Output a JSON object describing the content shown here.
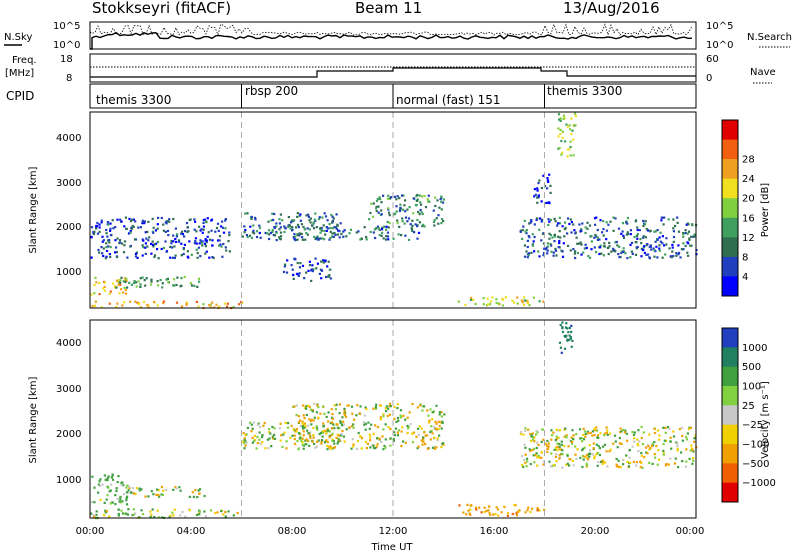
{
  "header": {
    "station": "Stokkseyri (fitACF)",
    "beam": "Beam 11",
    "date": "13/Aug/2016"
  },
  "info_panels": {
    "nsky_label": "N.Sky",
    "nsky_ticks": [
      "10^5",
      "10^0"
    ],
    "nsearch_label": "N.Search",
    "nsearch_ticks": [
      "10^5",
      "10^0"
    ],
    "freq_label": "Freq.",
    "freq_unit": "[MHz]",
    "freq_ticks": [
      "18",
      "8"
    ],
    "nave_label": "Nave",
    "nave_ticks": [
      "60",
      "0"
    ],
    "cpid_label": "CPID",
    "cpid_segments": [
      {
        "label": "themis 3300",
        "start_hour": 0,
        "end_hour": 6
      },
      {
        "label": "rbsp 200",
        "start_hour": 6,
        "end_hour": 12
      },
      {
        "label": "normal (fast) 151",
        "start_hour": 12,
        "end_hour": 18
      },
      {
        "label": "themis 3300",
        "start_hour": 18,
        "end_hour": 24
      }
    ]
  },
  "colors": {
    "power_scale": [
      "#0000ff",
      "#1f3fbf",
      "#2f6f4f",
      "#3f9f5f",
      "#7fcf3f",
      "#f0e020",
      "#f0a020",
      "#f06010",
      "#e00000"
    ],
    "velocity_scale": [
      "#2040c0",
      "#208060",
      "#40a040",
      "#80d040",
      "#c8c8c8",
      "#f0d000",
      "#f0a000",
      "#f06000",
      "#e00000"
    ]
  },
  "chart_data": [
    {
      "type": "heatmap",
      "name": "power-panel",
      "xlabel": "",
      "ylabel": "Slant Range [km]",
      "xlim": [
        0,
        24
      ],
      "ylim": [
        180,
        4500
      ],
      "y_ticks": [
        "1000",
        "2000",
        "3000",
        "4000"
      ],
      "colorbar_label": "Power [dB]",
      "colorbar_ticks": [
        "4",
        "8",
        "12",
        "16",
        "20",
        "24",
        "28"
      ],
      "scatter_regions": [
        {
          "x": [
            0,
            6
          ],
          "y": [
            200,
            350
          ],
          "value": 24
        },
        {
          "x": [
            0,
            1.5
          ],
          "y": [
            500,
            900
          ],
          "value": 22
        },
        {
          "x": [
            1,
            4.5
          ],
          "y": [
            650,
            900
          ],
          "value": 14
        },
        {
          "x": [
            0,
            5.5
          ],
          "y": [
            1300,
            2200
          ],
          "value": 8
        },
        {
          "x": [
            6,
            10
          ],
          "y": [
            1700,
            2300
          ],
          "value": 10
        },
        {
          "x": [
            7,
            13
          ],
          "y": [
            1700,
            2000
          ],
          "value": 10
        },
        {
          "x": [
            7.5,
            9.5
          ],
          "y": [
            800,
            1300
          ],
          "value": 8
        },
        {
          "x": [
            11,
            14
          ],
          "y": [
            2000,
            2700
          ],
          "value": 12
        },
        {
          "x": [
            14.5,
            18
          ],
          "y": [
            250,
            450
          ],
          "value": 20
        },
        {
          "x": [
            17,
            24
          ],
          "y": [
            1300,
            2200
          ],
          "value": 9
        },
        {
          "x": [
            17.5,
            18.2
          ],
          "y": [
            2500,
            3200
          ],
          "value": 6
        },
        {
          "x": [
            18.5,
            19.2
          ],
          "y": [
            3500,
            4500
          ],
          "value": 18
        }
      ]
    },
    {
      "type": "heatmap",
      "name": "velocity-panel",
      "xlabel": "Time UT",
      "ylabel": "Slant Range [km]",
      "xlim": [
        0,
        24
      ],
      "ylim": [
        180,
        4500
      ],
      "x_ticks": [
        "00:00",
        "04:00",
        "08:00",
        "12:00",
        "16:00",
        "20:00",
        "00:00"
      ],
      "y_ticks": [
        "1000",
        "2000",
        "3000",
        "4000"
      ],
      "colorbar_label": "Velocity [m s⁻¹]",
      "colorbar_ticks": [
        "1000",
        "500",
        "100",
        "25",
        "−25",
        "−100",
        "−500",
        "−1000"
      ],
      "scatter_regions": [
        {
          "x": [
            0,
            6
          ],
          "y": [
            200,
            400
          ],
          "value": 100
        },
        {
          "x": [
            0,
            1.5
          ],
          "y": [
            500,
            1200
          ],
          "value": 200
        },
        {
          "x": [
            1.5,
            4.5
          ],
          "y": [
            650,
            900
          ],
          "value": 0
        },
        {
          "x": [
            6,
            10
          ],
          "y": [
            1700,
            2300
          ],
          "value": 0
        },
        {
          "x": [
            8,
            14
          ],
          "y": [
            1700,
            2700
          ],
          "value": 0
        },
        {
          "x": [
            14.5,
            18
          ],
          "y": [
            250,
            500
          ],
          "value": -300
        },
        {
          "x": [
            17,
            24
          ],
          "y": [
            1300,
            2200
          ],
          "value": 0
        },
        {
          "x": [
            18.5,
            19.2
          ],
          "y": [
            3800,
            4500
          ],
          "value": 800
        }
      ]
    }
  ]
}
